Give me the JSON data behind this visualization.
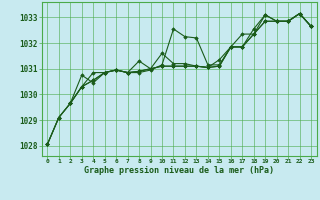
{
  "background_color": "#c8eaf0",
  "plot_bg_color": "#c8eaf0",
  "grid_color": "#4aaa4a",
  "line_color": "#1a5c1a",
  "xlabel": "Graphe pression niveau de la mer (hPa)",
  "xlim": [
    -0.5,
    23.5
  ],
  "ylim": [
    1027.6,
    1033.6
  ],
  "yticks": [
    1028,
    1029,
    1030,
    1031,
    1032,
    1033
  ],
  "xticks": [
    0,
    1,
    2,
    3,
    4,
    5,
    6,
    7,
    8,
    9,
    10,
    11,
    12,
    13,
    14,
    15,
    16,
    17,
    18,
    19,
    20,
    21,
    22,
    23
  ],
  "series": [
    {
      "x": [
        0,
        1,
        2,
        3,
        4,
        5,
        6,
        7,
        8,
        9,
        10,
        11,
        12,
        13,
        14,
        15,
        16,
        17,
        18,
        19,
        20,
        21,
        22,
        23
      ],
      "y": [
        1028.05,
        1029.1,
        1029.65,
        1030.3,
        1030.55,
        1030.85,
        1030.95,
        1030.85,
        1030.85,
        1030.95,
        1031.15,
        1032.55,
        1032.25,
        1032.2,
        1031.15,
        1031.15,
        1031.85,
        1031.85,
        1032.55,
        1033.1,
        1032.85,
        1032.85,
        1033.15,
        1032.65
      ]
    },
    {
      "x": [
        0,
        1,
        2,
        3,
        4,
        5,
        6,
        7,
        8,
        9,
        10,
        11,
        12,
        13,
        14,
        15,
        16,
        17,
        18,
        19,
        20,
        21,
        22,
        23
      ],
      "y": [
        1028.05,
        1029.1,
        1029.65,
        1030.3,
        1030.85,
        1030.85,
        1030.95,
        1030.85,
        1030.9,
        1031.0,
        1031.1,
        1031.1,
        1031.1,
        1031.1,
        1031.05,
        1031.1,
        1031.85,
        1031.85,
        1032.35,
        1032.85,
        1032.85,
        1032.85,
        1033.15,
        1032.65
      ]
    },
    {
      "x": [
        2,
        3,
        4,
        5,
        6,
        7,
        8,
        9,
        10,
        11,
        12,
        13,
        14,
        15,
        16,
        17,
        18,
        19,
        20,
        21,
        22,
        23
      ],
      "y": [
        1029.65,
        1030.75,
        1030.45,
        1030.85,
        1030.95,
        1030.85,
        1031.3,
        1031.0,
        1031.1,
        1031.1,
        1031.1,
        1031.1,
        1031.05,
        1031.1,
        1031.85,
        1031.85,
        1032.35,
        1032.85,
        1032.85,
        1032.85,
        1033.15,
        1032.65
      ]
    },
    {
      "x": [
        0,
        1,
        2,
        3,
        4,
        5,
        6,
        7,
        8,
        9,
        10,
        11,
        12,
        13,
        14,
        15,
        16,
        17,
        18,
        19,
        20,
        21,
        22,
        23
      ],
      "y": [
        1028.05,
        1029.1,
        1029.65,
        1030.3,
        1030.55,
        1030.85,
        1030.95,
        1030.85,
        1030.9,
        1031.0,
        1031.6,
        1031.2,
        1031.2,
        1031.1,
        1031.05,
        1031.35,
        1031.85,
        1032.35,
        1032.35,
        1033.1,
        1032.85,
        1032.85,
        1033.15,
        1032.65
      ]
    }
  ]
}
